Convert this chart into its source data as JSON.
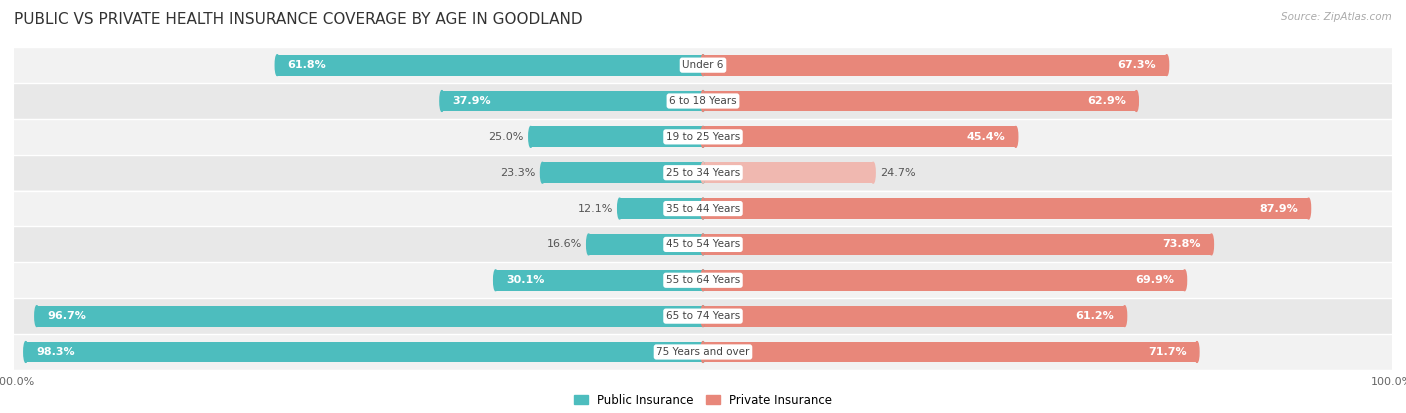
{
  "title": "PUBLIC VS PRIVATE HEALTH INSURANCE COVERAGE BY AGE IN GOODLAND",
  "source": "Source: ZipAtlas.com",
  "categories": [
    "Under 6",
    "6 to 18 Years",
    "19 to 25 Years",
    "25 to 34 Years",
    "35 to 44 Years",
    "45 to 54 Years",
    "55 to 64 Years",
    "65 to 74 Years",
    "75 Years and over"
  ],
  "public_values": [
    61.8,
    37.9,
    25.0,
    23.3,
    12.1,
    16.6,
    30.1,
    96.7,
    98.3
  ],
  "private_values": [
    67.3,
    62.9,
    45.4,
    24.7,
    87.9,
    73.8,
    69.9,
    61.2,
    71.7
  ],
  "public_color": "#4dbdbe",
  "private_color": "#e8877a",
  "private_color_light": "#f0b8b0",
  "public_label": "Public Insurance",
  "private_label": "Private Insurance",
  "bg_color": "#ffffff",
  "row_colors": [
    "#f2f2f2",
    "#e8e8e8"
  ],
  "title_color": "#333333",
  "source_color": "#aaaaaa",
  "label_dark": "#555555",
  "max_value": 100.0,
  "title_fontsize": 11,
  "label_fontsize": 8,
  "cat_fontsize": 7.5,
  "bar_height": 0.58,
  "threshold_white": 25
}
